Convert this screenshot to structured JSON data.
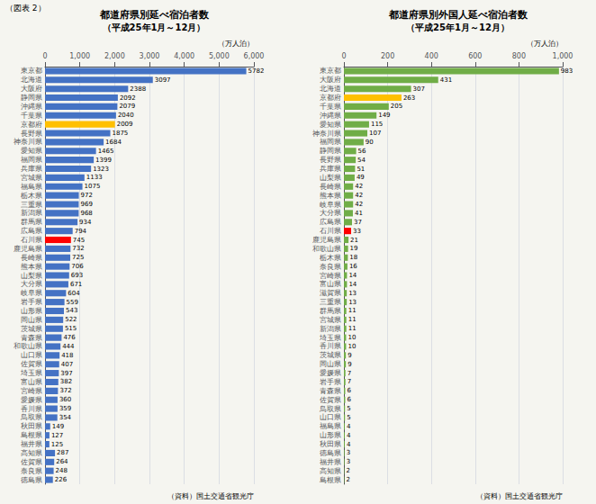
{
  "title": "（図表 2）",
  "chart_data": [
    {
      "type": "bar",
      "orientation": "horizontal",
      "title": "都道府県別延べ宿泊者数",
      "subtitle": "（平成25年1月～12月）",
      "xlabel": "（万人泊）",
      "annotations": [
        "（資料）国土交通省観光庁"
      ],
      "categories": [
        "東京都",
        "北海道",
        "大阪府",
        "静岡県",
        "沖縄県",
        "千葉県",
        "京都府",
        "長野県",
        "神奈川県",
        "愛知県",
        "福岡県",
        "兵庫県",
        "宮城県",
        "福島県",
        "栃木県",
        "三重県",
        "新潟県",
        "群馬県",
        "広島県",
        "石川県",
        "鹿児島県",
        "長崎県",
        "熊本県",
        "山梨県",
        "大分県",
        "岐阜県",
        "岩手県",
        "山形県",
        "岡山県",
        "茨城県",
        "青森県",
        "和歌山県",
        "山口県",
        "佐賀県",
        "埼玉県",
        "富山県",
        "宮崎県",
        "愛媛県",
        "香川県",
        "鳥取県",
        "秋田県",
        "島根県",
        "福井県",
        "高知県",
        "佐賀県",
        "奈良県",
        "徳島県"
      ],
      "values": [
        5782,
        3097,
        2388,
        2092,
        2079,
        2040,
        2009,
        1875,
        1684,
        1465,
        1399,
        1323,
        1133,
        1075,
        972,
        969,
        968,
        934,
        794,
        745,
        732,
        725,
        706,
        693,
        671,
        604,
        559,
        543,
        522,
        515,
        476,
        444,
        418,
        407,
        397,
        382,
        372,
        360,
        359,
        354,
        149,
        127,
        125,
        287,
        264,
        248,
        226
      ],
      "colors": [
        "#4472c4",
        "#4472c4",
        "#4472c4",
        "#4472c4",
        "#4472c4",
        "#4472c4",
        "#ffc000",
        "#4472c4",
        "#4472c4",
        "#4472c4",
        "#4472c4",
        "#4472c4",
        "#4472c4",
        "#4472c4",
        "#4472c4",
        "#4472c4",
        "#4472c4",
        "#4472c4",
        "#4472c4",
        "#ff0000",
        "#4472c4",
        "#4472c4",
        "#4472c4",
        "#4472c4",
        "#4472c4",
        "#4472c4",
        "#4472c4",
        "#4472c4",
        "#4472c4",
        "#4472c4",
        "#4472c4",
        "#4472c4",
        "#4472c4",
        "#4472c4",
        "#4472c4",
        "#4472c4",
        "#4472c4",
        "#4472c4",
        "#4472c4",
        "#4472c4",
        "#4472c4",
        "#4472c4",
        "#4472c4",
        "#4472c4",
        "#4472c4",
        "#4472c4",
        "#4472c4"
      ],
      "xlim": [
        0,
        6000
      ],
      "xticks": [
        0,
        {
          "value": 1000,
          "label": "1,000"
        },
        {
          "value": 2000,
          "label": "2,000"
        },
        {
          "value": 3000,
          "label": "3,000"
        },
        {
          "value": 4000,
          "label": "4,000"
        },
        {
          "value": 5000,
          "label": "5,000"
        },
        {
          "value": 6000,
          "label": "6,000"
        }
      ],
      "grid": true,
      "data_labels": true
    },
    {
      "type": "bar",
      "orientation": "horizontal",
      "title": "都道府県別外国人延べ宿泊者数",
      "subtitle": "（平成25年1月～12月）",
      "xlabel": "（万人泊）",
      "annotations": [
        "（資料）国土交通省観光庁"
      ],
      "categories": [
        "東京都",
        "大阪府",
        "北海道",
        "京都府",
        "千葉県",
        "沖縄県",
        "愛知県",
        "神奈川県",
        "福岡県",
        "静岡県",
        "長野県",
        "兵庫県",
        "山梨県",
        "長崎県",
        "熊本県",
        "岐阜県",
        "大分県",
        "広島県",
        "石川県",
        "鹿児島県",
        "和歌山県",
        "栃木県",
        "奈良県",
        "宮崎県",
        "富山県",
        "滋賀県",
        "三重県",
        "群馬県",
        "宮城県",
        "新潟県",
        "埼玉県",
        "香川県",
        "茨城県",
        "岡山県",
        "愛媛県",
        "岩手県",
        "青森県",
        "佐賀県",
        "鳥取県",
        "山口県",
        "福島県",
        "山形県",
        "秋田県",
        "徳島県",
        "福井県",
        "高知県",
        "島根県"
      ],
      "values": [
        983,
        431,
        307,
        263,
        205,
        149,
        115,
        107,
        90,
        56,
        54,
        51,
        49,
        42,
        42,
        42,
        41,
        37,
        33,
        21,
        19,
        18,
        16,
        14,
        14,
        13,
        13,
        11,
        11,
        11,
        10,
        10,
        9,
        9,
        7,
        7,
        6,
        6,
        5,
        5,
        4,
        4,
        4,
        3,
        3,
        2,
        2
      ],
      "colors": [
        "#70ad47",
        "#70ad47",
        "#70ad47",
        "#ffc000",
        "#70ad47",
        "#70ad47",
        "#70ad47",
        "#70ad47",
        "#70ad47",
        "#70ad47",
        "#70ad47",
        "#70ad47",
        "#70ad47",
        "#70ad47",
        "#70ad47",
        "#70ad47",
        "#70ad47",
        "#70ad47",
        "#ff0000",
        "#70ad47",
        "#70ad47",
        "#70ad47",
        "#70ad47",
        "#70ad47",
        "#70ad47",
        "#70ad47",
        "#70ad47",
        "#70ad47",
        "#70ad47",
        "#70ad47",
        "#70ad47",
        "#70ad47",
        "#70ad47",
        "#70ad47",
        "#70ad47",
        "#70ad47",
        "#70ad47",
        "#70ad47",
        "#70ad47",
        "#70ad47",
        "#70ad47",
        "#70ad47",
        "#70ad47",
        "#70ad47",
        "#70ad47",
        "#70ad47",
        "#70ad47"
      ],
      "xlim": [
        0,
        1000
      ],
      "xticks": [
        0,
        200,
        400,
        600,
        800,
        {
          "value": 1000,
          "label": "1,000"
        }
      ],
      "grid": true,
      "data_labels": true
    }
  ]
}
